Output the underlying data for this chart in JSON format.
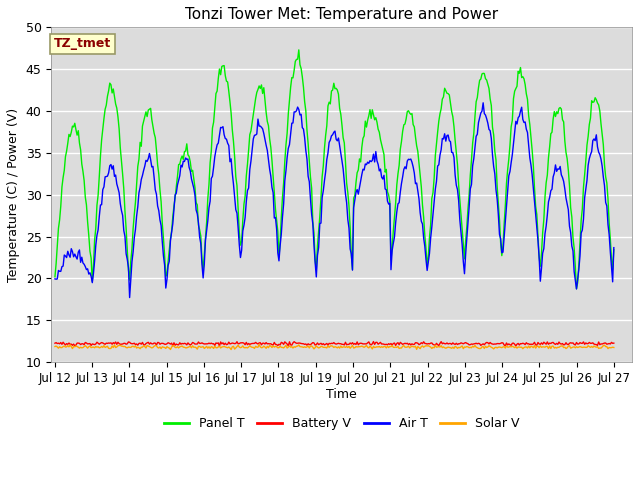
{
  "title": "Tonzi Tower Met: Temperature and Power",
  "xlabel": "Time",
  "ylabel": "Temperature (C) / Power (V)",
  "ylim": [
    10,
    50
  ],
  "yticks": [
    10,
    15,
    20,
    25,
    30,
    35,
    40,
    45,
    50
  ],
  "annotation_text": "TZ_tmet",
  "annotation_color": "#8B0000",
  "annotation_bg": "#FFFFCC",
  "annotation_edge": "#999966",
  "bg_color": "#DCDCDC",
  "panel_t_color": "#00EE00",
  "battery_v_color": "#FF0000",
  "air_t_color": "#0000FF",
  "solar_v_color": "#FFA500",
  "legend_labels": [
    "Panel T",
    "Battery V",
    "Air T",
    "Solar V"
  ],
  "x_tick_labels": [
    "Jul 12",
    "Jul 13",
    "Jul 14",
    "Jul 15",
    "Jul 16",
    "Jul 17",
    "Jul 18",
    "Jul 19",
    "Jul 20",
    "Jul 21",
    "Jul 22",
    "Jul 23",
    "Jul 24",
    "Jul 25",
    "Jul 26",
    "Jul 27"
  ],
  "n_points": 480,
  "panel_peaks": [
    38.5,
    43.0,
    40.2,
    35.2,
    45.3,
    42.7,
    46.0,
    43.0,
    39.7,
    39.8,
    42.5,
    44.5,
    44.7,
    40.5,
    41.5,
    40.7
  ],
  "panel_lows": [
    20.0,
    19.5,
    19.2,
    20.2,
    22.2,
    24.2,
    21.5,
    20.2,
    28.5,
    21.0,
    21.2,
    22.5,
    22.5,
    19.0,
    17.5,
    23.0
  ],
  "air_peaks": [
    23.0,
    33.5,
    34.2,
    34.2,
    37.5,
    38.2,
    40.2,
    37.5,
    34.5,
    34.0,
    37.0,
    40.0,
    39.5,
    33.0,
    36.5,
    35.0
  ],
  "air_lows": [
    20.0,
    19.5,
    18.5,
    19.5,
    22.0,
    23.0,
    21.5,
    20.0,
    28.0,
    20.5,
    20.5,
    22.0,
    22.0,
    18.5,
    17.5,
    23.5
  ],
  "battery_mean": 12.2,
  "solar_mean": 11.8,
  "figsize": [
    6.4,
    4.8
  ],
  "dpi": 100
}
